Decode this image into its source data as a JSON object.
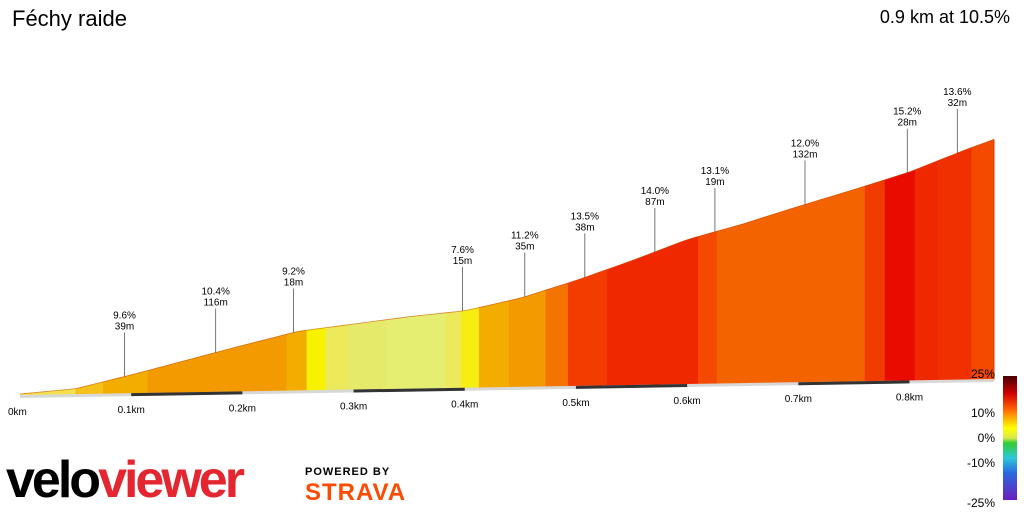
{
  "header": {
    "title": "Féchy raide",
    "summary": "0.9 km at 10.5%"
  },
  "branding": {
    "logo_part1": "velo",
    "logo_part2": "viewer",
    "powered_by": "POWERED BY",
    "strava": "STRAVA"
  },
  "colors": {
    "logo_red": "#e3262f",
    "strava_orange": "#fc4c02"
  },
  "chart_data": {
    "type": "area",
    "title": "Féchy raide",
    "xlabel": "",
    "ylabel": "",
    "x_ticks": [
      "0km",
      "0.1km",
      "0.2km",
      "0.3km",
      "0.4km",
      "0.5km",
      "0.6km",
      "0.7km",
      "0.8km"
    ],
    "x_tick_values": [
      0,
      0.1,
      0.2,
      0.3,
      0.4,
      0.5,
      0.6,
      0.7,
      0.8
    ],
    "xlim": [
      0,
      0.876
    ],
    "distance_km": [
      0,
      0.05,
      0.1,
      0.2,
      0.25,
      0.3,
      0.35,
      0.4,
      0.45,
      0.5,
      0.55,
      0.6,
      0.65,
      0.7,
      0.75,
      0.8,
      0.85,
      0.876
    ],
    "elevation_m": [
      0,
      1.8,
      6.5,
      16.5,
      21.3,
      23.8,
      26.3,
      28.3,
      32.6,
      38.6,
      45.3,
      52.5,
      57.8,
      63.8,
      69.5,
      75.5,
      83,
      86.6
    ],
    "segments": [
      {
        "start_km": 0.0,
        "end_km": 0.05,
        "gradient": 2,
        "color": "#f2e04e"
      },
      {
        "start_km": 0.05,
        "end_km": 0.075,
        "gradient": 4,
        "color": "#f5c11a"
      },
      {
        "start_km": 0.075,
        "end_km": 0.115,
        "gradient": 7,
        "color": "#f3ac00"
      },
      {
        "start_km": 0.115,
        "end_km": 0.24,
        "gradient": 10,
        "color": "#f39a00"
      },
      {
        "start_km": 0.24,
        "end_km": 0.258,
        "gradient": 7,
        "color": "#f3ac00"
      },
      {
        "start_km": 0.258,
        "end_km": 0.275,
        "gradient": 3,
        "color": "#f7f200"
      },
      {
        "start_km": 0.275,
        "end_km": 0.295,
        "gradient": 2,
        "color": "#ecea5a"
      },
      {
        "start_km": 0.295,
        "end_km": 0.33,
        "gradient": 2,
        "color": "#e6ea6a"
      },
      {
        "start_km": 0.33,
        "end_km": 0.383,
        "gradient": 1,
        "color": "#e6ee72"
      },
      {
        "start_km": 0.383,
        "end_km": 0.397,
        "gradient": 2,
        "color": "#ecea5a"
      },
      {
        "start_km": 0.397,
        "end_km": 0.413,
        "gradient": 3,
        "color": "#f5ee10"
      },
      {
        "start_km": 0.413,
        "end_km": 0.44,
        "gradient": 6,
        "color": "#f3ac00"
      },
      {
        "start_km": 0.44,
        "end_km": 0.473,
        "gradient": 9,
        "color": "#f39a00"
      },
      {
        "start_km": 0.473,
        "end_km": 0.493,
        "gradient": 11,
        "color": "#f37400"
      },
      {
        "start_km": 0.493,
        "end_km": 0.528,
        "gradient": 13,
        "color": "#f23c00"
      },
      {
        "start_km": 0.528,
        "end_km": 0.61,
        "gradient": 14,
        "color": "#f02800"
      },
      {
        "start_km": 0.61,
        "end_km": 0.627,
        "gradient": 13,
        "color": "#f34a00"
      },
      {
        "start_km": 0.627,
        "end_km": 0.76,
        "gradient": 12,
        "color": "#f36400"
      },
      {
        "start_km": 0.76,
        "end_km": 0.778,
        "gradient": 13,
        "color": "#f03c00"
      },
      {
        "start_km": 0.778,
        "end_km": 0.805,
        "gradient": 15,
        "color": "#ea0b00"
      },
      {
        "start_km": 0.805,
        "end_km": 0.825,
        "gradient": 14,
        "color": "#f02800"
      },
      {
        "start_km": 0.825,
        "end_km": 0.856,
        "gradient": 14,
        "color": "#f03000"
      },
      {
        "start_km": 0.856,
        "end_km": 0.876,
        "gradient": 13,
        "color": "#f34a00"
      }
    ],
    "annotations": [
      {
        "km": 0.094,
        "grade": "9.6%",
        "length": "39m"
      },
      {
        "km": 0.176,
        "grade": "10.4%",
        "length": "116m"
      },
      {
        "km": 0.246,
        "grade": "9.2%",
        "length": "18m"
      },
      {
        "km": 0.398,
        "grade": "7.6%",
        "length": "15m"
      },
      {
        "km": 0.454,
        "grade": "11.2%",
        "length": "35m"
      },
      {
        "km": 0.508,
        "grade": "13.5%",
        "length": "38m"
      },
      {
        "km": 0.571,
        "grade": "14.0%",
        "length": "87m"
      },
      {
        "km": 0.625,
        "grade": "13.1%",
        "length": "19m"
      },
      {
        "km": 0.706,
        "grade": "12.0%",
        "length": "132m"
      },
      {
        "km": 0.798,
        "grade": "15.2%",
        "length": "28m"
      },
      {
        "km": 0.843,
        "grade": "13.6%",
        "length": "32m"
      }
    ],
    "gradient_scale": {
      "labels": [
        "25%",
        "10%",
        "0%",
        "-10%",
        "-25%"
      ],
      "values": [
        25,
        10,
        0,
        -10,
        -25
      ],
      "stops": [
        {
          "value": 25,
          "color": "#4a0000"
        },
        {
          "value": 18,
          "color": "#d00000"
        },
        {
          "value": 12,
          "color": "#ff5a00"
        },
        {
          "value": 8,
          "color": "#ffb000"
        },
        {
          "value": 4,
          "color": "#ffff00"
        },
        {
          "value": 0,
          "color": "#d8e84a"
        },
        {
          "value": -2,
          "color": "#33cc33"
        },
        {
          "value": -8,
          "color": "#2ec8d8"
        },
        {
          "value": -14,
          "color": "#2a6ae0"
        },
        {
          "value": -25,
          "color": "#6a1fbf"
        }
      ]
    }
  }
}
